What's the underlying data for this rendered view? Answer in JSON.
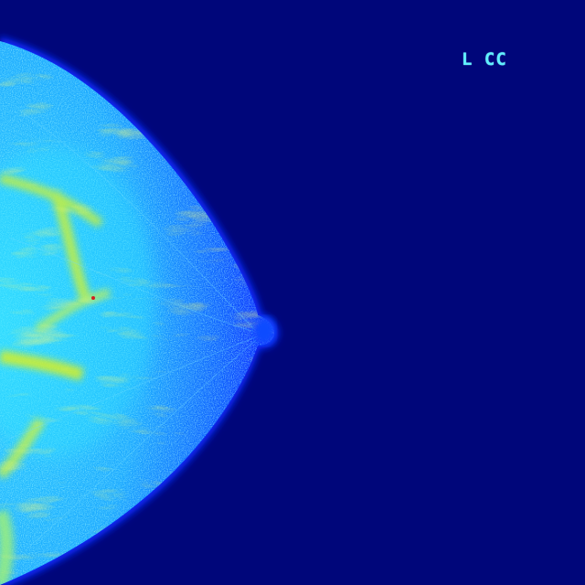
{
  "image": {
    "modality_view_label": "L CC",
    "colormap": "jet",
    "colors": {
      "background": "#00067a",
      "edge": "#0a2cff",
      "tissue": "#1aa8ff",
      "dense": "#2ee8ff",
      "hot": "#d8f020",
      "label": "#5ff0ff"
    }
  }
}
